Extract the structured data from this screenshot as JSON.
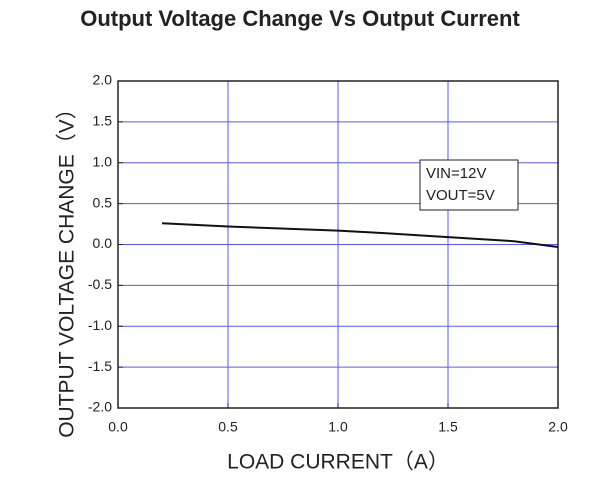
{
  "chart_data": {
    "type": "line",
    "title": "Output Voltage Change Vs Output Current",
    "x_label": "LOAD CURRENT（A）",
    "y_label": "OUTPUT VOLTAGE CHANGE（V）",
    "annotations": [
      "VIN=12V",
      "VOUT=5V"
    ],
    "x": [
      0.2,
      0.5,
      0.8,
      1.0,
      1.2,
      1.5,
      1.8,
      2.0
    ],
    "values": [
      0.26,
      0.22,
      0.19,
      0.17,
      0.14,
      0.09,
      0.04,
      -0.03
    ],
    "color": "#111111",
    "grid_color": "#5a5af0",
    "grid": true,
    "xlim": [
      0,
      2
    ],
    "ylim": [
      -2,
      2
    ],
    "xticks": [
      {
        "value": 0,
        "label": "0.0"
      },
      {
        "value": 0.5,
        "label": "0.5"
      },
      {
        "value": 1,
        "label": "1.0"
      },
      {
        "value": 1.5,
        "label": "1.5"
      },
      {
        "value": 2,
        "label": "2.0"
      }
    ],
    "yticks": [
      {
        "value": 2,
        "label": "2.0"
      },
      {
        "value": 1.5,
        "label": "1.5"
      },
      {
        "value": 1,
        "label": "1.0"
      },
      {
        "value": 0.5,
        "label": "0.5"
      },
      {
        "value": 0,
        "label": "0.0"
      },
      {
        "value": -0.5,
        "label": "-0.5"
      },
      {
        "value": -1,
        "label": "-1.0"
      },
      {
        "value": -1.5,
        "label": "-1.5"
      },
      {
        "value": -2,
        "label": "-2.0"
      }
    ]
  }
}
